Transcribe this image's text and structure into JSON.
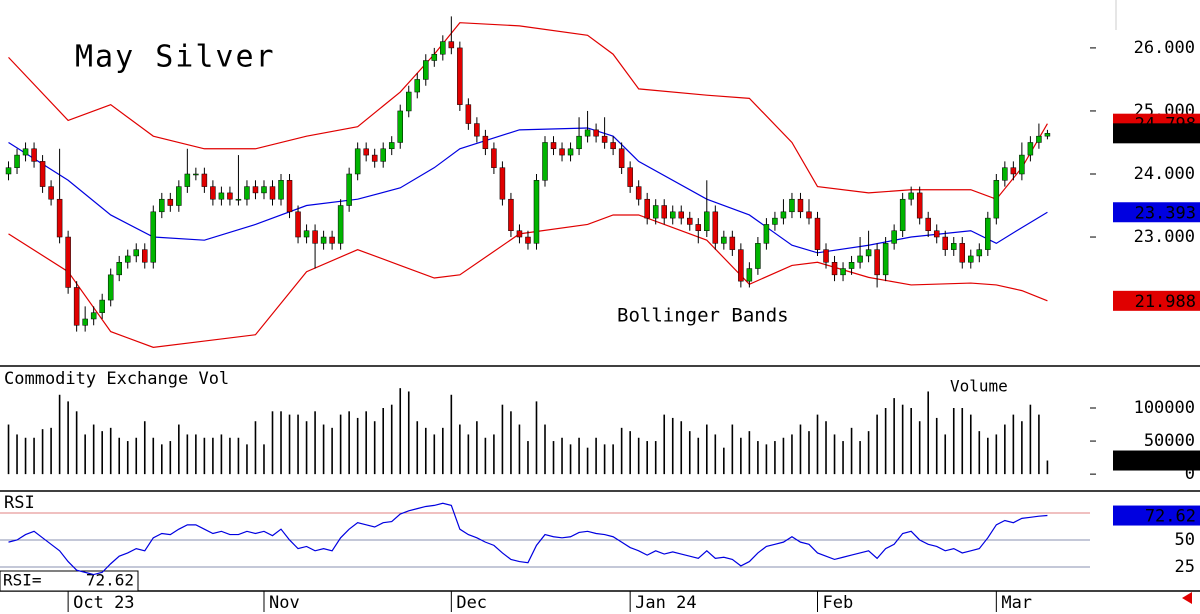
{
  "chart_data": [
    {
      "type": "candlestick",
      "title": "May Silver",
      "annotation": "Bollinger Bands",
      "x": [
        0,
        1,
        2,
        3,
        4,
        5,
        6,
        7,
        8,
        9,
        10,
        11,
        12,
        13,
        14,
        15,
        16,
        17,
        18,
        19,
        20,
        21,
        22,
        23,
        24,
        25,
        26,
        27,
        28,
        29,
        30,
        31,
        32,
        33,
        34,
        35,
        36,
        37,
        38,
        39,
        40,
        41,
        42,
        43,
        44,
        45,
        46,
        47,
        48,
        49,
        50,
        51,
        52,
        53,
        54,
        55,
        56,
        57,
        58,
        59,
        60,
        61,
        62,
        63,
        64,
        65,
        66,
        67,
        68,
        69,
        70,
        71,
        72,
        73,
        74,
        75,
        76,
        77,
        78,
        79,
        80,
        81,
        82,
        83,
        84,
        85,
        86,
        87,
        88,
        89,
        90,
        91,
        92,
        93,
        94,
        95,
        96,
        97,
        98,
        99,
        100,
        101,
        102,
        103,
        104,
        105,
        106,
        107,
        108,
        109,
        110,
        111,
        112,
        113,
        114,
        115,
        116,
        117,
        118,
        119,
        120,
        121,
        122
      ],
      "open": [
        24.0,
        24.1,
        24.3,
        24.4,
        24.2,
        23.8,
        23.6,
        23.0,
        22.2,
        21.6,
        21.7,
        21.8,
        22.0,
        22.4,
        22.6,
        22.7,
        22.8,
        22.6,
        23.4,
        23.6,
        23.5,
        23.8,
        24.0,
        24.0,
        23.8,
        23.6,
        23.7,
        23.6,
        23.6,
        23.8,
        23.7,
        23.8,
        23.6,
        23.9,
        23.4,
        23.0,
        23.1,
        22.9,
        23.0,
        22.9,
        23.5,
        24.0,
        24.4,
        24.3,
        24.2,
        24.4,
        24.5,
        25.0,
        25.3,
        25.5,
        25.8,
        25.9,
        26.1,
        26.0,
        25.1,
        24.8,
        24.6,
        24.4,
        24.1,
        23.6,
        23.1,
        23.0,
        22.9,
        23.9,
        24.5,
        24.4,
        24.3,
        24.4,
        24.6,
        24.7,
        24.6,
        24.5,
        24.4,
        24.1,
        23.8,
        23.6,
        23.3,
        23.5,
        23.3,
        23.4,
        23.3,
        23.2,
        23.1,
        23.4,
        22.9,
        23.0,
        22.8,
        22.3,
        22.5,
        22.9,
        23.2,
        23.3,
        23.4,
        23.6,
        23.4,
        23.3,
        22.8,
        22.6,
        22.4,
        22.5,
        22.6,
        22.7,
        22.8,
        22.4,
        22.9,
        23.1,
        23.6,
        23.7,
        23.3,
        23.1,
        23.0,
        22.8,
        22.9,
        22.6,
        22.7,
        22.8,
        23.3,
        23.9,
        24.1,
        24.0,
        24.3,
        24.5,
        24.6
      ],
      "high": [
        24.2,
        24.4,
        24.5,
        24.5,
        24.3,
        23.9,
        24.4,
        23.1,
        22.3,
        21.9,
        21.9,
        22.1,
        22.5,
        22.7,
        22.8,
        22.9,
        22.9,
        23.5,
        23.7,
        23.7,
        23.9,
        24.4,
        24.1,
        24.1,
        23.9,
        23.8,
        23.8,
        24.3,
        23.9,
        23.9,
        23.9,
        23.9,
        24.0,
        24.0,
        23.5,
        23.2,
        23.2,
        23.1,
        23.1,
        23.6,
        24.1,
        24.5,
        24.5,
        24.4,
        24.5,
        24.6,
        25.1,
        25.4,
        25.6,
        25.9,
        26.0,
        26.2,
        26.5,
        26.1,
        25.2,
        24.9,
        24.7,
        24.5,
        24.2,
        23.7,
        23.2,
        23.1,
        24.0,
        24.6,
        24.6,
        24.5,
        24.5,
        24.9,
        25.0,
        24.8,
        24.9,
        24.6,
        24.5,
        24.2,
        23.9,
        23.7,
        23.6,
        23.6,
        23.5,
        23.5,
        23.4,
        23.3,
        23.9,
        23.5,
        23.1,
        23.1,
        22.9,
        22.6,
        23.0,
        23.3,
        23.4,
        23.6,
        23.7,
        23.7,
        23.6,
        23.4,
        22.9,
        22.7,
        22.6,
        22.7,
        23.0,
        23.1,
        22.9,
        23.0,
        23.2,
        23.7,
        23.8,
        23.8,
        23.4,
        23.2,
        23.1,
        23.0,
        23.0,
        22.8,
        22.9,
        23.4,
        24.0,
        24.2,
        24.2,
        24.5,
        24.6,
        24.8,
        24.7
      ],
      "low": [
        23.9,
        24.0,
        24.2,
        24.1,
        23.7,
        23.5,
        22.9,
        22.1,
        21.5,
        21.5,
        21.6,
        21.7,
        21.9,
        22.3,
        22.5,
        22.6,
        22.5,
        22.5,
        23.3,
        23.4,
        23.4,
        23.7,
        23.9,
        23.7,
        23.5,
        23.5,
        23.5,
        23.5,
        23.5,
        23.6,
        23.6,
        23.5,
        23.5,
        23.3,
        22.9,
        22.9,
        22.5,
        22.8,
        22.8,
        22.8,
        23.4,
        23.9,
        24.2,
        24.1,
        24.1,
        24.3,
        24.4,
        24.9,
        25.2,
        25.4,
        25.7,
        25.8,
        25.9,
        25.0,
        24.7,
        24.5,
        24.3,
        24.0,
        23.5,
        23.0,
        22.9,
        22.8,
        22.8,
        23.8,
        24.3,
        24.2,
        24.2,
        24.3,
        24.5,
        24.5,
        24.4,
        24.3,
        24.0,
        23.7,
        23.5,
        23.2,
        23.2,
        23.2,
        23.2,
        23.2,
        23.1,
        22.9,
        23.0,
        22.8,
        22.8,
        22.7,
        22.2,
        22.2,
        22.4,
        22.8,
        23.1,
        23.2,
        23.3,
        23.3,
        23.2,
        22.7,
        22.5,
        22.3,
        22.3,
        22.4,
        22.5,
        22.6,
        22.2,
        22.3,
        22.8,
        23.0,
        23.5,
        23.2,
        23.0,
        22.9,
        22.7,
        22.7,
        22.5,
        22.5,
        22.6,
        22.7,
        23.2,
        23.8,
        23.9,
        23.9,
        24.2,
        24.4,
        24.55
      ],
      "close": [
        24.1,
        24.3,
        24.4,
        24.2,
        23.8,
        23.6,
        23.0,
        22.2,
        21.6,
        21.7,
        21.8,
        22.0,
        22.4,
        22.6,
        22.7,
        22.8,
        22.6,
        23.4,
        23.6,
        23.5,
        23.8,
        24.0,
        24.0,
        23.8,
        23.6,
        23.7,
        23.6,
        23.6,
        23.8,
        23.7,
        23.8,
        23.6,
        23.9,
        23.4,
        23.0,
        23.1,
        22.9,
        23.0,
        22.9,
        23.5,
        24.0,
        24.4,
        24.3,
        24.2,
        24.4,
        24.5,
        25.0,
        25.3,
        25.5,
        25.8,
        25.9,
        26.1,
        26.0,
        25.1,
        24.8,
        24.6,
        24.4,
        24.1,
        23.6,
        23.1,
        23.0,
        22.9,
        23.9,
        24.5,
        24.4,
        24.3,
        24.4,
        24.6,
        24.7,
        24.6,
        24.5,
        24.4,
        24.1,
        23.8,
        23.6,
        23.3,
        23.5,
        23.3,
        23.4,
        23.3,
        23.2,
        23.1,
        23.4,
        22.9,
        23.0,
        22.8,
        22.3,
        22.5,
        22.9,
        23.2,
        23.3,
        23.4,
        23.6,
        23.4,
        23.3,
        22.8,
        22.6,
        22.4,
        22.5,
        22.6,
        22.7,
        22.8,
        22.4,
        22.9,
        23.1,
        23.6,
        23.7,
        23.3,
        23.1,
        23.0,
        22.8,
        22.9,
        22.6,
        22.7,
        22.8,
        23.3,
        23.9,
        24.1,
        24.0,
        24.3,
        24.5,
        24.6,
        24.645
      ],
      "up_color": "#00b400",
      "down_color": "#e00000",
      "close_box_color": "#000000",
      "overlays": [
        {
          "color": "#e00000",
          "x": [
            0,
            7,
            12,
            17,
            23,
            29,
            35,
            41,
            46,
            50,
            53,
            60,
            68,
            71,
            74,
            82,
            87,
            92,
            95,
            101,
            106,
            113,
            116,
            119,
            122
          ],
          "values": [
            25.85,
            24.85,
            25.1,
            24.6,
            24.4,
            24.4,
            24.6,
            24.75,
            25.3,
            25.9,
            26.4,
            26.35,
            26.2,
            25.9,
            25.35,
            25.25,
            25.2,
            24.5,
            23.8,
            23.7,
            23.75,
            23.75,
            23.6,
            24.1,
            24.798
          ]
        },
        {
          "color": "#0000e0",
          "x": [
            0,
            7,
            12,
            17,
            23,
            29,
            35,
            41,
            46,
            50,
            53,
            60,
            68,
            71,
            74,
            82,
            87,
            92,
            95,
            101,
            106,
            113,
            116,
            119,
            122
          ],
          "values": [
            24.5,
            23.9,
            23.35,
            23.0,
            22.95,
            23.2,
            23.5,
            23.6,
            23.78,
            24.1,
            24.4,
            24.7,
            24.73,
            24.6,
            24.2,
            23.6,
            23.35,
            22.87,
            22.75,
            22.87,
            23.0,
            23.1,
            22.9,
            23.15,
            23.393
          ]
        },
        {
          "color": "#e00000",
          "x": [
            0,
            7,
            12,
            17,
            23,
            29,
            35,
            41,
            46,
            50,
            53,
            60,
            68,
            71,
            74,
            82,
            87,
            92,
            95,
            101,
            106,
            113,
            116,
            119,
            122
          ],
          "values": [
            23.05,
            22.45,
            21.5,
            21.25,
            21.35,
            21.45,
            22.45,
            22.8,
            22.55,
            22.35,
            22.4,
            23.05,
            23.2,
            23.35,
            23.35,
            22.95,
            22.25,
            22.55,
            22.6,
            22.36,
            22.24,
            22.27,
            22.24,
            22.15,
            21.988
          ]
        }
      ],
      "xlim": [
        -1,
        127
      ],
      "xticks": [
        {
          "value": 7,
          "label": "Oct 23"
        },
        {
          "value": 30,
          "label": "Nov"
        },
        {
          "value": 52,
          "label": "Dec"
        },
        {
          "value": 73,
          "label": "Jan 24"
        },
        {
          "value": 95,
          "label": "Feb"
        },
        {
          "value": 116,
          "label": "Mar"
        }
      ],
      "ylim": [
        20.97,
        26.76
      ],
      "yticks": [
        {
          "value": 23,
          "label": "23.000"
        },
        {
          "value": 24,
          "label": "24.000"
        },
        {
          "value": 25,
          "label": "25.000"
        },
        {
          "value": 26,
          "label": "26.000"
        }
      ]
    },
    {
      "type": "bar",
      "title": "Commodity Exchange Vol",
      "annotation": "Volume",
      "color": "#000000",
      "box_color": "#000000",
      "values": [
        75000,
        60000,
        55000,
        55000,
        68000,
        70000,
        120000,
        110000,
        95000,
        60000,
        75000,
        65000,
        70000,
        55000,
        50000,
        55000,
        80000,
        55000,
        45000,
        50000,
        75000,
        60000,
        60000,
        55000,
        55000,
        60000,
        55000,
        55000,
        45000,
        80000,
        45000,
        95000,
        95000,
        90000,
        90000,
        80000,
        95000,
        75000,
        70000,
        90000,
        95000,
        85000,
        95000,
        80000,
        100000,
        105000,
        130000,
        125000,
        80000,
        70000,
        60000,
        70000,
        120000,
        75000,
        60000,
        80000,
        55000,
        60000,
        105000,
        95000,
        75000,
        50000,
        110000,
        75000,
        50000,
        55000,
        45000,
        55000,
        40000,
        55000,
        45000,
        45000,
        70000,
        65000,
        55000,
        50000,
        50000,
        90000,
        85000,
        80000,
        65000,
        55000,
        75000,
        60000,
        40000,
        75000,
        55000,
        65000,
        50000,
        45000,
        50000,
        55000,
        60000,
        75000,
        65000,
        90000,
        80000,
        60000,
        50000,
        70000,
        50000,
        65000,
        90000,
        100000,
        115000,
        105000,
        100000,
        80000,
        125000,
        85000,
        60000,
        100000,
        100000,
        90000,
        65000,
        55000,
        60000,
        75000,
        90000,
        80000,
        105000,
        90000,
        20582
      ],
      "ylim": [
        -24000,
        162000
      ],
      "yticks": [
        0,
        50000,
        100000
      ]
    },
    {
      "type": "line",
      "title": "RSI",
      "readout_label": "RSI=",
      "color": "#0000e0",
      "level_color": "#e08080",
      "grid_color": "#8890b0",
      "grid": true,
      "values": [
        48,
        50,
        55,
        58,
        52,
        46,
        40,
        30,
        22,
        20,
        18,
        20,
        28,
        35,
        38,
        42,
        40,
        52,
        56,
        55,
        60,
        64,
        64,
        60,
        56,
        58,
        55,
        55,
        58,
        56,
        58,
        54,
        60,
        50,
        42,
        44,
        40,
        42,
        40,
        52,
        60,
        66,
        64,
        62,
        66,
        67,
        74,
        77,
        79,
        81,
        82,
        84,
        82,
        60,
        55,
        52,
        48,
        45,
        38,
        32,
        30,
        29,
        45,
        55,
        53,
        52,
        53,
        57,
        58,
        56,
        55,
        53,
        48,
        43,
        40,
        36,
        40,
        37,
        39,
        37,
        35,
        33,
        40,
        33,
        34,
        32,
        26,
        30,
        38,
        44,
        46,
        48,
        53,
        48,
        46,
        38,
        35,
        32,
        34,
        36,
        38,
        40,
        33,
        42,
        46,
        56,
        58,
        50,
        46,
        44,
        40,
        42,
        38,
        40,
        42,
        52,
        64,
        68,
        66,
        70,
        71,
        72,
        72.62
      ],
      "levels": [
        75
      ],
      "ylim": [
        3.7,
        94.4
      ],
      "yticks": [
        25,
        50
      ]
    }
  ]
}
